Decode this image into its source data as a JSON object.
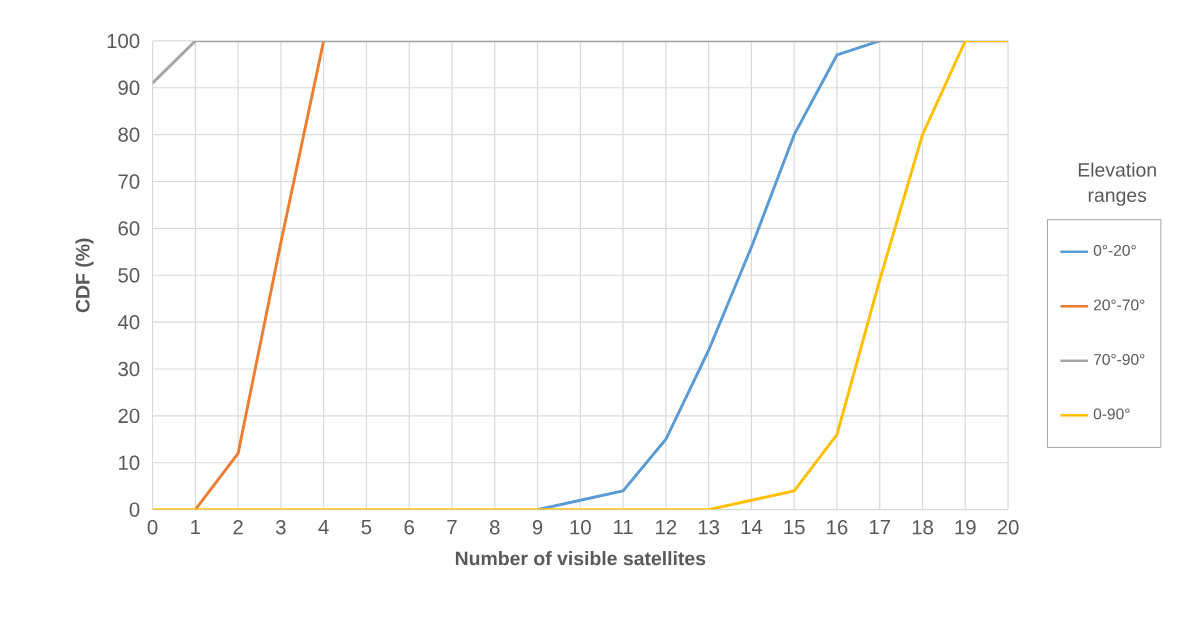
{
  "chart_data": {
    "type": "line",
    "xlabel": "Number of visible satellites",
    "ylabel": "CDF (%)",
    "legend_title": "Elevation ranges",
    "x": [
      0,
      1,
      2,
      3,
      4,
      5,
      6,
      7,
      8,
      9,
      10,
      11,
      12,
      13,
      14,
      15,
      16,
      17,
      18,
      19,
      20
    ],
    "series": [
      {
        "name": "0°-20°",
        "color": "#5b9bd5",
        "values": [
          null,
          null,
          null,
          null,
          null,
          null,
          null,
          null,
          null,
          0,
          2,
          4,
          15,
          34,
          56,
          80,
          97,
          100,
          null,
          null,
          null
        ]
      },
      {
        "name": "20°-70°",
        "color": "#ed7d31",
        "values": [
          null,
          0,
          12,
          57,
          100,
          null,
          null,
          null,
          null,
          null,
          null,
          null,
          null,
          null,
          null,
          null,
          null,
          null,
          null,
          null,
          null
        ]
      },
      {
        "name": "70°-90°",
        "color": "#a5a5a5",
        "values": [
          91,
          100,
          100,
          100,
          100,
          100,
          100,
          100,
          100,
          100,
          100,
          100,
          100,
          100,
          100,
          100,
          100,
          100,
          100,
          100,
          null
        ]
      },
      {
        "name": "0-90°",
        "color": "#ffc000",
        "values": [
          0,
          0,
          0,
          0,
          0,
          0,
          0,
          0,
          0,
          0,
          0,
          0,
          0,
          0,
          2,
          4,
          16,
          49,
          80,
          100,
          100
        ]
      }
    ],
    "xlim": [
      0,
      20
    ],
    "xticks": [
      0,
      1,
      2,
      3,
      4,
      5,
      6,
      7,
      8,
      9,
      10,
      11,
      12,
      13,
      14,
      15,
      16,
      17,
      18,
      19,
      20
    ],
    "ylim": [
      0,
      100
    ],
    "yticks": [
      0,
      10,
      20,
      30,
      40,
      50,
      60,
      70,
      80,
      90,
      100
    ],
    "grid": true,
    "legend": "right",
    "marker": "none",
    "line_style": "solid"
  }
}
